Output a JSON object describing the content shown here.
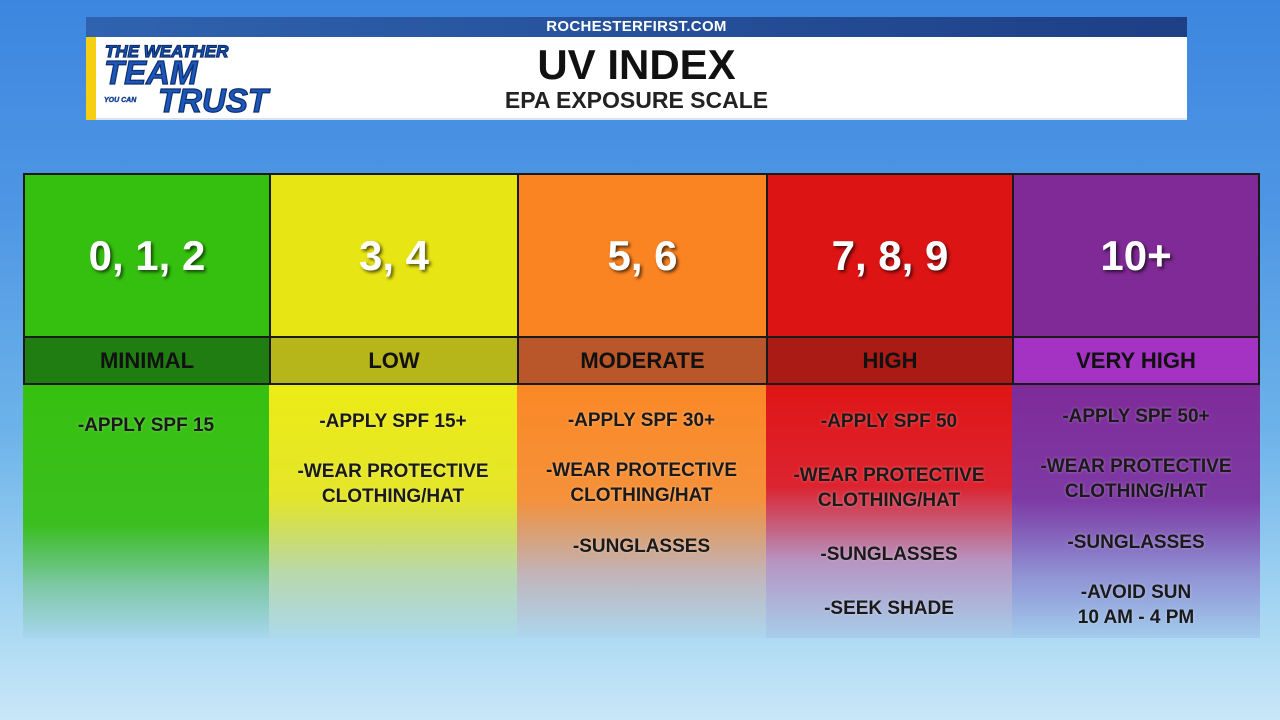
{
  "header": {
    "url": "ROCHESTERFIRST.COM",
    "title": "UV INDEX",
    "subtitle": "EPA EXPOSURE SCALE",
    "logo": {
      "line_the_weather": "THE WEATHER",
      "line_team": "TEAM",
      "line_you_can": "YOU CAN",
      "line_trust": "TRUST"
    }
  },
  "colors": {
    "accent_yellow": "#f6cf12",
    "minimal": "#35c00f",
    "low": "#e8e514",
    "moderate": "#fb8422",
    "high": "#dd1414",
    "very_high": "#7f2a96"
  },
  "levels": [
    {
      "range": "0, 1, 2",
      "label": "MINIMAL",
      "advice": [
        "-APPLY SPF 15"
      ]
    },
    {
      "range": "3, 4",
      "label": "LOW",
      "advice": [
        "-APPLY SPF 15+",
        "-WEAR PROTECTIVE\nCLOTHING/HAT"
      ]
    },
    {
      "range": "5, 6",
      "label": "MODERATE",
      "advice": [
        "-APPLY SPF 30+",
        "-WEAR PROTECTIVE\nCLOTHING/HAT",
        "-SUNGLASSES"
      ]
    },
    {
      "range": "7, 8, 9",
      "label": "HIGH",
      "advice": [
        "-APPLY SPF 50",
        "-WEAR PROTECTIVE\nCLOTHING/HAT",
        "-SUNGLASSES",
        "-SEEK SHADE"
      ]
    },
    {
      "range": "10+",
      "label": "VERY HIGH",
      "advice": [
        "-APPLY SPF 50+",
        "-WEAR PROTECTIVE\nCLOTHING/HAT",
        "-SUNGLASSES",
        "-AVOID SUN\n10 AM - 4 PM"
      ]
    }
  ]
}
